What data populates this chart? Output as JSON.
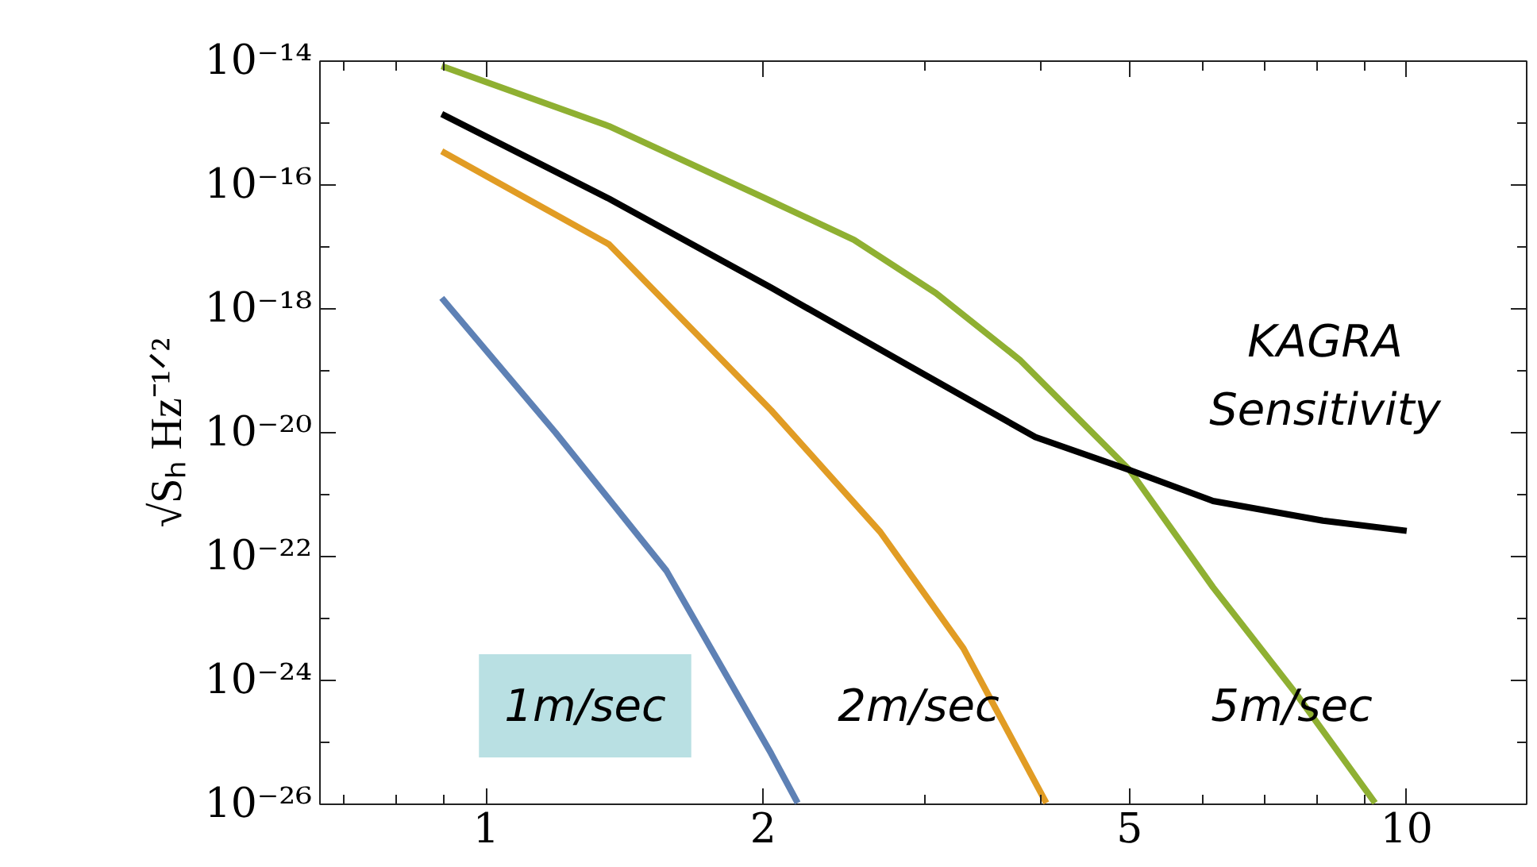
{
  "chart_data": {
    "type": "line",
    "ylabel": "√Sₕ Hz⁻¹ᐟ²",
    "log": "xy",
    "xlim": [
      0.66,
      13.5
    ],
    "ylim": [
      1e-26,
      1e-14
    ],
    "xticks": [
      {
        "value": 0.7,
        "label": null
      },
      {
        "value": 0.8,
        "label": null
      },
      {
        "value": 0.9,
        "label": null
      },
      1,
      2,
      {
        "value": 3,
        "label": null
      },
      {
        "value": 4,
        "label": null
      },
      5,
      {
        "value": 6,
        "label": null
      },
      {
        "value": 7,
        "label": null
      },
      {
        "value": 8,
        "label": null
      },
      {
        "value": 9,
        "label": null
      },
      10
    ],
    "yticks": [
      {
        "value": 1e-14,
        "label": "10⁻¹⁴"
      },
      {
        "value": 1e-15,
        "label": null
      },
      {
        "value": 1e-16,
        "label": "10⁻¹⁶"
      },
      {
        "value": 1e-17,
        "label": null
      },
      {
        "value": 1e-18,
        "label": "10⁻¹⁸"
      },
      {
        "value": 1e-19,
        "label": null
      },
      {
        "value": 1e-20,
        "label": "10⁻²⁰"
      },
      {
        "value": 1e-21,
        "label": null
      },
      {
        "value": 1e-22,
        "label": "10⁻²²"
      },
      {
        "value": 1e-23,
        "label": null
      },
      {
        "value": 1e-24,
        "label": "10⁻²⁴"
      },
      {
        "value": 1e-25,
        "label": null
      },
      {
        "value": 1e-26,
        "label": "10⁻²⁶"
      }
    ],
    "grid": false,
    "legend": false,
    "marker": "none",
    "line_style": "solid",
    "series": [
      {
        "name": "1m/sec",
        "color": "#5e81b5",
        "x": [
          0.895,
          1.19,
          1.57,
          2.04,
          2.18
        ],
        "values": [
          1.5e-18,
          1e-20,
          5.9e-23,
          6.6e-26,
          1.05e-26
        ]
      },
      {
        "name": "2m/sec",
        "color": "#e19c24",
        "x": [
          0.895,
          1.36,
          2.04,
          2.68,
          3.3,
          4.06
        ],
        "values": [
          3.5e-16,
          1.1e-17,
          2.3e-20,
          2.5e-22,
          3.3e-24,
          1.05e-26
        ]
      },
      {
        "name": "5m/sec",
        "color": "#8fb032",
        "x": [
          0.895,
          1.36,
          2.04,
          2.51,
          3.08,
          3.8,
          5.0,
          6.16,
          7.57,
          9.24
        ],
        "values": [
          8.3e-15,
          8.9e-16,
          5.5e-17,
          1.3e-17,
          1.8e-18,
          1.5e-19,
          2.5e-21,
          3.2e-23,
          6.3e-25,
          1.05e-26
        ]
      },
      {
        "name": "KAGRA\nSensitivity",
        "color": "#000000",
        "x": [
          0.895,
          1.36,
          2.04,
          2.88,
          3.95,
          5.0,
          6.16,
          8.11,
          10.0
        ],
        "values": [
          1.4e-15,
          6e-17,
          2.2e-18,
          1.2e-19,
          8.5e-21,
          2.5e-21,
          7.9e-22,
          3.8e-22,
          2.6e-22
        ]
      }
    ]
  }
}
